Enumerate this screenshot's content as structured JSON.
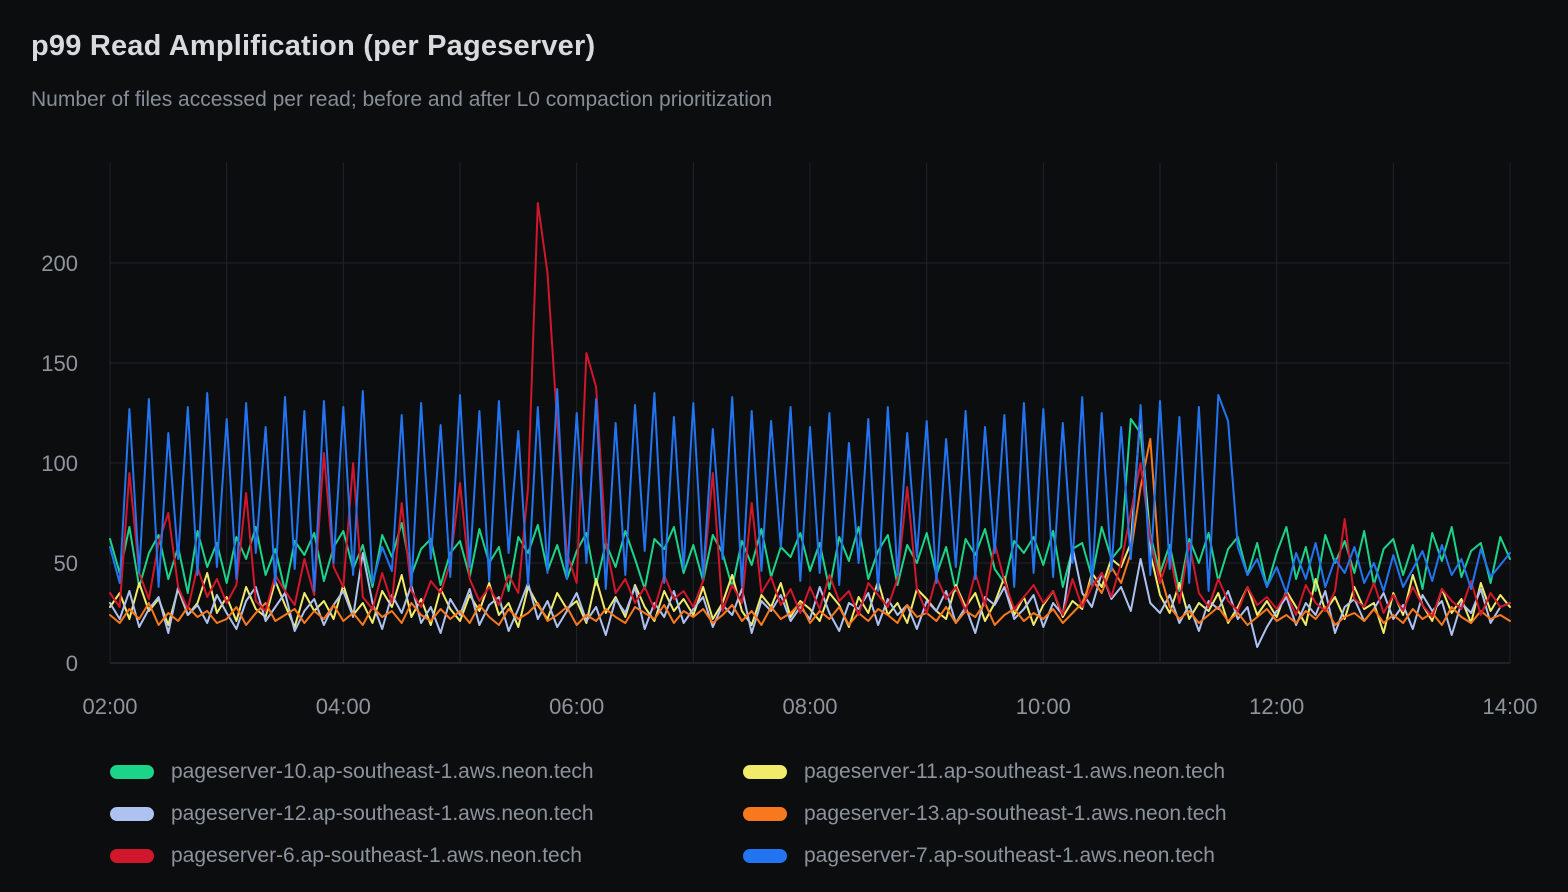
{
  "panel": {
    "title": "p99 Read Amplification (per Pageserver)",
    "subtitle": "Number of files accessed per read; before and after L0 compaction prioritization"
  },
  "theme": {
    "background": "#0c0d0e",
    "grid_color": "#222428",
    "axis_line_color": "#36383d",
    "axis_text_color": "#8e949c",
    "title_color": "#d8dade",
    "subtitle_color": "#868d97",
    "legend_text_color": "#8c939d"
  },
  "chart_data": {
    "type": "line",
    "title": "p99 Read Amplification (per Pageserver)",
    "subtitle": "Number of files accessed per read; before and after L0 compaction prioritization",
    "grid": true,
    "legend_position": "bottom",
    "x_axis": {
      "start": "02:00",
      "end": "14:00",
      "tick_labels": [
        "02:00",
        "04:00",
        "06:00",
        "08:00",
        "10:00",
        "12:00",
        "14:00"
      ],
      "minor_gridline_interval_minutes": 60,
      "sample_interval_minutes": 5
    },
    "y_axis": {
      "ticks": [
        0,
        50,
        100,
        150,
        200
      ],
      "range": [
        0,
        250
      ]
    },
    "series": [
      {
        "name": "pageserver-10.ap-southeast-1.aws.neon.tech",
        "color": "#1bd389",
        "values": [
          62,
          45,
          68,
          38,
          55,
          64,
          42,
          58,
          35,
          66,
          48,
          60,
          40,
          63,
          52,
          68,
          44,
          57,
          36,
          61,
          54,
          65,
          41,
          58,
          66,
          47,
          59,
          38,
          64,
          53,
          70,
          44,
          57,
          62,
          39,
          55,
          61,
          43,
          67,
          50,
          58,
          36,
          63,
          55,
          69,
          46,
          59,
          42,
          56,
          65,
          39,
          60,
          48,
          66,
          52,
          37,
          62,
          57,
          68,
          45,
          59,
          41,
          64,
          55,
          38,
          61,
          49,
          67,
          43,
          58,
          53,
          65,
          46,
          60,
          37,
          63,
          51,
          68,
          42,
          56,
          64,
          39,
          59,
          50,
          65,
          44,
          58,
          36,
          62,
          54,
          67,
          47,
          40,
          61,
          55,
          63,
          49,
          66,
          38,
          57,
          60,
          43,
          68,
          52,
          58,
          122,
          115,
          64,
          45,
          59,
          36,
          62,
          50,
          65,
          41,
          57,
          63,
          44,
          60,
          38,
          55,
          68,
          42,
          58,
          36,
          64,
          50,
          61,
          45,
          66,
          39,
          57,
          62,
          44,
          59,
          37,
          65,
          51,
          68,
          43,
          56,
          60,
          40,
          63,
          52
        ]
      },
      {
        "name": "pageserver-11.ap-southeast-1.aws.neon.tech",
        "color": "#f0eb6a",
        "values": [
          28,
          35,
          22,
          40,
          26,
          32,
          19,
          37,
          24,
          30,
          45,
          25,
          33,
          21,
          38,
          27,
          23,
          41,
          29,
          18,
          35,
          26,
          31,
          22,
          39,
          24,
          30,
          20,
          36,
          28,
          44,
          23,
          32,
          19,
          37,
          27,
          21,
          34,
          26,
          40,
          24,
          30,
          18,
          38,
          29,
          22,
          35,
          27,
          31,
          20,
          42,
          25,
          33,
          23,
          39,
          28,
          21,
          36,
          26,
          32,
          24,
          38,
          22,
          30,
          44,
          26,
          19,
          34,
          28,
          40,
          23,
          31,
          27,
          21,
          35,
          29,
          18,
          33,
          25,
          41,
          24,
          30,
          20,
          37,
          32,
          26,
          22,
          39,
          28,
          35,
          21,
          30,
          43,
          24,
          33,
          19,
          29,
          36,
          23,
          31,
          27,
          45,
          38,
          52,
          48,
          60,
          125,
          55,
          34,
          25,
          40,
          22,
          30,
          26,
          35,
          20,
          28,
          38,
          24,
          31,
          23,
          36,
          28,
          19,
          42,
          26,
          33,
          22,
          38,
          27,
          30,
          15,
          35,
          24,
          44,
          29,
          21,
          37,
          25,
          32,
          20,
          40,
          26,
          34,
          28
        ]
      },
      {
        "name": "pageserver-12.ap-southeast-1.aws.neon.tech",
        "color": "#aec2f2",
        "values": [
          30,
          22,
          36,
          18,
          27,
          33,
          15,
          38,
          24,
          29,
          20,
          34,
          25,
          17,
          31,
          38,
          21,
          28,
          35,
          16,
          26,
          32,
          19,
          29,
          36,
          23,
          55,
          30,
          17,
          34,
          25,
          39,
          20,
          28,
          15,
          32,
          24,
          37,
          19,
          29,
          33,
          16,
          27,
          40,
          22,
          31,
          18,
          26,
          35,
          21,
          28,
          14,
          32,
          25,
          38,
          17,
          30,
          23,
          36,
          20,
          27,
          33,
          18,
          29,
          24,
          37,
          15,
          31,
          26,
          34,
          21,
          28,
          22,
          38,
          25,
          16,
          30,
          27,
          35,
          19,
          32,
          24,
          29,
          17,
          31,
          26,
          36,
          20,
          28,
          15,
          33,
          29,
          38,
          22,
          27,
          34,
          18,
          30,
          24,
          58,
          35,
          28,
          45,
          32,
          38,
          26,
          52,
          30,
          25,
          34,
          20,
          29,
          16,
          31,
          27,
          36,
          22,
          28,
          8,
          18,
          26,
          33,
          19,
          30,
          24,
          36,
          15,
          28,
          32,
          21,
          27,
          35,
          22,
          29,
          17,
          34,
          26,
          31,
          14,
          30,
          25,
          37,
          20,
          28,
          30
        ]
      },
      {
        "name": "pageserver-13.ap-southeast-1.aws.neon.tech",
        "color": "#f8791d",
        "values": [
          24,
          20,
          27,
          22,
          30,
          19,
          25,
          21,
          28,
          23,
          26,
          20,
          22,
          28,
          19,
          25,
          30,
          21,
          24,
          27,
          20,
          26,
          22,
          29,
          21,
          25,
          19,
          28,
          23,
          26,
          20,
          30,
          24,
          21,
          27,
          22,
          26,
          20,
          29,
          23,
          19,
          27,
          22,
          25,
          30,
          21,
          24,
          28,
          19,
          24,
          21,
          27,
          23,
          20,
          28,
          25,
          22,
          29,
          20,
          26,
          23,
          27,
          20,
          24,
          29,
          21,
          26,
          19,
          28,
          22,
          25,
          30,
          20,
          26,
          22,
          28,
          19,
          25,
          21,
          27,
          24,
          20,
          29,
          23,
          25,
          21,
          28,
          20,
          26,
          23,
          30,
          19,
          24,
          27,
          21,
          25,
          22,
          27,
          20,
          25,
          30,
          42,
          35,
          48,
          40,
          55,
          88,
          112,
          45,
          28,
          22,
          26,
          20,
          24,
          28,
          21,
          25,
          19,
          23,
          27,
          21,
          24,
          20,
          26,
          22,
          28,
          19,
          23,
          25,
          21,
          27,
          20,
          24,
          20,
          27,
          22,
          25,
          19,
          28,
          23,
          20,
          26,
          22,
          24,
          21
        ]
      },
      {
        "name": "pageserver-6.ap-southeast-1.aws.neon.tech",
        "color": "#d0172c",
        "values": [
          35,
          28,
          95,
          45,
          32,
          60,
          75,
          38,
          27,
          48,
          33,
          42,
          30,
          39,
          85,
          31,
          26,
          44,
          36,
          29,
          52,
          34,
          105,
          48,
          38,
          100,
          33,
          27,
          45,
          30,
          80,
          36,
          28,
          41,
          35,
          50,
          90,
          42,
          31,
          38,
          29,
          44,
          35,
          88,
          230,
          195,
          120,
          55,
          40,
          155,
          138,
          60,
          35,
          42,
          30,
          38,
          27,
          44,
          32,
          36,
          28,
          41,
          95,
          26,
          39,
          30,
          80,
          35,
          43,
          29,
          37,
          25,
          38,
          27,
          44,
          31,
          36,
          24,
          40,
          34,
          28,
          42,
          88,
          37,
          25,
          43,
          32,
          38,
          26,
          45,
          29,
          60,
          41,
          27,
          33,
          39,
          30,
          36,
          24,
          42,
          28,
          38,
          45,
          33,
          50,
          75,
          100,
          62,
          40,
          55,
          30,
          60,
          35,
          28,
          42,
          31,
          26,
          38,
          29,
          33,
          27,
          35,
          24,
          39,
          30,
          26,
          36,
          72,
          32,
          28,
          40,
          25,
          34,
          26,
          38,
          29,
          23,
          37,
          31,
          27,
          41,
          24,
          35,
          28,
          30
        ]
      },
      {
        "name": "pageserver-7.ap-southeast-1.aws.neon.tech",
        "color": "#2274f0",
        "values": [
          58,
          40,
          127,
          45,
          132,
          38,
          115,
          52,
          128,
          44,
          135,
          48,
          122,
          42,
          130,
          55,
          118,
          39,
          133,
          47,
          126,
          36,
          131,
          50,
          128,
          44,
          136,
          40,
          58,
          46,
          124,
          38,
          130,
          52,
          119,
          43,
          134,
          48,
          126,
          41,
          131,
          55,
          116,
          39,
          128,
          45,
          137,
          42,
          125,
          50,
          132,
          37,
          120,
          44,
          129,
          56,
          135,
          40,
          123,
          47,
          130,
          43,
          117,
          52,
          133,
          38,
          126,
          46,
          121,
          58,
          128,
          41,
          118,
          45,
          125,
          39,
          110,
          50,
          122,
          36,
          128,
          44,
          115,
          53,
          121,
          40,
          112,
          48,
          126,
          42,
          118,
          55,
          124,
          38,
          130,
          45,
          127,
          43,
          120,
          50,
          133,
          39,
          125,
          46,
          118,
          52,
          129,
          44,
          131,
          47,
          123,
          40,
          128,
          36,
          134,
          121,
          58,
          44,
          52,
          38,
          48,
          35,
          55,
          42,
          60,
          38,
          52,
          45,
          58,
          40,
          50,
          36,
          54,
          38,
          47,
          56,
          41,
          59,
          44,
          52,
          37,
          57,
          43,
          49,
          55
        ]
      }
    ]
  }
}
